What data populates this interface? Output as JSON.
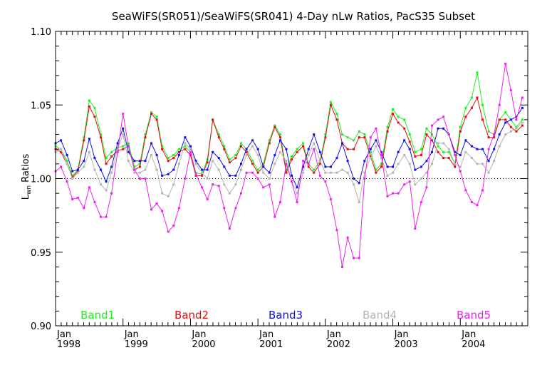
{
  "chart_data": {
    "type": "line",
    "title": "SeaWiFS(SR051)/SeaWiFS(SR041) 4-Day nLw Ratios, PacS35 Subset",
    "ylabel_main": "L",
    "ylabel_sub": "wn",
    "ylabel_rest": " Ratios",
    "xlabel": "",
    "xlim": [
      1998.0,
      2005.0
    ],
    "ylim": [
      0.9,
      1.1
    ],
    "y_ticks": [
      0.9,
      0.95,
      1.0,
      1.05,
      1.1
    ],
    "y_tick_labels": [
      "0.90",
      "0.95",
      "1.00",
      "1.05",
      "1.10"
    ],
    "x_ticks": [
      {
        "x": 1998.0,
        "month": "Jan",
        "year": "1998"
      },
      {
        "x": 1999.0,
        "month": "Jan",
        "year": "1999"
      },
      {
        "x": 2000.0,
        "month": "Jan",
        "year": "2000"
      },
      {
        "x": 2001.0,
        "month": "Jan",
        "year": "2001"
      },
      {
        "x": 2002.0,
        "month": "Jan",
        "year": "2002"
      },
      {
        "x": 2003.0,
        "month": "Jan",
        "year": "2003"
      },
      {
        "x": 2004.0,
        "month": "Jan",
        "year": "2004"
      }
    ],
    "reference_line": 1.0,
    "grid": false,
    "legend_placement": "bottom",
    "series": [
      {
        "name": "Band1",
        "color": "#22ee22",
        "x": [
          1998.0,
          1998.08,
          1998.17,
          1998.25,
          1998.33,
          1998.42,
          1998.5,
          1998.58,
          1998.67,
          1998.75,
          1998.83,
          1998.92,
          1999.0,
          1999.08,
          1999.17,
          1999.25,
          1999.33,
          1999.42,
          1999.5,
          1999.58,
          1999.67,
          1999.75,
          1999.83,
          1999.92,
          2000.0,
          2000.08,
          2000.17,
          2000.25,
          2000.33,
          2000.42,
          2000.5,
          2000.58,
          2000.67,
          2000.75,
          2000.83,
          2000.92,
          2001.0,
          2001.08,
          2001.17,
          2001.25,
          2001.33,
          2001.42,
          2001.5,
          2001.58,
          2001.67,
          2001.75,
          2001.83,
          2001.92,
          2002.0,
          2002.08,
          2002.17,
          2002.25,
          2002.33,
          2002.42,
          2002.5,
          2002.58,
          2002.67,
          2002.75,
          2002.83,
          2002.92,
          2003.0,
          2003.08,
          2003.17,
          2003.25,
          2003.33,
          2003.42,
          2003.5,
          2003.58,
          2003.67,
          2003.75,
          2003.83,
          2003.92,
          2004.0,
          2004.08,
          2004.17,
          2004.25,
          2004.33,
          2004.42,
          2004.5,
          2004.58,
          2004.67,
          2004.75,
          2004.83,
          2004.92
        ],
        "y": [
          1.022,
          1.02,
          1.012,
          1.002,
          1.006,
          1.028,
          1.053,
          1.048,
          1.03,
          1.014,
          1.018,
          1.021,
          1.022,
          1.024,
          1.008,
          1.01,
          1.03,
          1.045,
          1.042,
          1.022,
          1.014,
          1.016,
          1.02,
          1.022,
          1.018,
          1.004,
          1.003,
          1.013,
          1.04,
          1.03,
          1.022,
          1.013,
          1.016,
          1.024,
          1.02,
          1.012,
          1.006,
          1.01,
          1.026,
          1.036,
          1.03,
          1.006,
          1.015,
          1.02,
          1.024,
          1.01,
          1.006,
          1.012,
          1.03,
          1.052,
          1.044,
          1.03,
          1.028,
          1.026,
          1.032,
          1.03,
          1.018,
          1.006,
          1.01,
          1.035,
          1.047,
          1.042,
          1.04,
          1.03,
          1.018,
          1.02,
          1.034,
          1.03,
          1.022,
          1.018,
          1.018,
          1.01,
          1.035,
          1.048,
          1.055,
          1.072,
          1.05,
          1.032,
          1.03,
          1.04,
          1.045,
          1.04,
          1.035,
          1.04
        ]
      },
      {
        "name": "Band2",
        "color": "#dd1111",
        "x": [
          1998.0,
          1998.08,
          1998.17,
          1998.25,
          1998.33,
          1998.42,
          1998.5,
          1998.58,
          1998.67,
          1998.75,
          1998.83,
          1998.92,
          1999.0,
          1999.08,
          1999.17,
          1999.25,
          1999.33,
          1999.42,
          1999.5,
          1999.58,
          1999.67,
          1999.75,
          1999.83,
          1999.92,
          2000.0,
          2000.08,
          2000.17,
          2000.25,
          2000.33,
          2000.42,
          2000.5,
          2000.58,
          2000.67,
          2000.75,
          2000.83,
          2000.92,
          2001.0,
          2001.08,
          2001.17,
          2001.25,
          2001.33,
          2001.42,
          2001.5,
          2001.58,
          2001.67,
          2001.75,
          2001.83,
          2001.92,
          2002.0,
          2002.08,
          2002.17,
          2002.25,
          2002.33,
          2002.42,
          2002.5,
          2002.58,
          2002.67,
          2002.75,
          2002.83,
          2002.92,
          2003.0,
          2003.08,
          2003.17,
          2003.25,
          2003.33,
          2003.42,
          2003.5,
          2003.58,
          2003.67,
          2003.75,
          2003.83,
          2003.92,
          2004.0,
          2004.08,
          2004.17,
          2004.25,
          2004.33,
          2004.42,
          2004.5,
          2004.58,
          2004.67,
          2004.75,
          2004.83,
          2004.92
        ],
        "y": [
          1.02,
          1.018,
          1.01,
          1.001,
          1.005,
          1.026,
          1.049,
          1.042,
          1.028,
          1.01,
          1.015,
          1.019,
          1.02,
          1.022,
          1.006,
          1.008,
          1.028,
          1.044,
          1.04,
          1.02,
          1.012,
          1.014,
          1.018,
          1.02,
          1.016,
          1.002,
          1.002,
          1.011,
          1.04,
          1.028,
          1.02,
          1.011,
          1.014,
          1.022,
          1.018,
          1.01,
          1.004,
          1.008,
          1.024,
          1.035,
          1.028,
          1.004,
          1.013,
          1.018,
          1.022,
          1.008,
          1.004,
          1.01,
          1.028,
          1.05,
          1.04,
          1.024,
          1.02,
          1.02,
          1.028,
          1.028,
          1.015,
          1.004,
          1.008,
          1.032,
          1.044,
          1.038,
          1.034,
          1.025,
          1.015,
          1.016,
          1.03,
          1.026,
          1.018,
          1.014,
          1.014,
          1.008,
          1.032,
          1.042,
          1.048,
          1.055,
          1.04,
          1.028,
          1.028,
          1.04,
          1.04,
          1.035,
          1.032,
          1.036
        ]
      },
      {
        "name": "Band3",
        "color": "#1111dd",
        "x": [
          1998.0,
          1998.08,
          1998.17,
          1998.25,
          1998.33,
          1998.42,
          1998.5,
          1998.58,
          1998.67,
          1998.75,
          1998.83,
          1998.92,
          1999.0,
          1999.08,
          1999.17,
          1999.25,
          1999.33,
          1999.42,
          1999.5,
          1999.58,
          1999.67,
          1999.75,
          1999.83,
          1999.92,
          2000.0,
          2000.08,
          2000.17,
          2000.25,
          2000.33,
          2000.42,
          2000.5,
          2000.58,
          2000.67,
          2000.75,
          2000.83,
          2000.92,
          2001.0,
          2001.08,
          2001.17,
          2001.25,
          2001.33,
          2001.42,
          2001.5,
          2001.58,
          2001.67,
          2001.75,
          2001.83,
          2001.92,
          2002.0,
          2002.08,
          2002.17,
          2002.25,
          2002.33,
          2002.42,
          2002.5,
          2002.58,
          2002.67,
          2002.75,
          2002.83,
          2002.92,
          2003.0,
          2003.08,
          2003.17,
          2003.25,
          2003.33,
          2003.42,
          2003.5,
          2003.58,
          2003.67,
          2003.75,
          2003.83,
          2003.92,
          2004.0,
          2004.08,
          2004.17,
          2004.25,
          2004.33,
          2004.42,
          2004.5,
          2004.58,
          2004.67,
          2004.75,
          2004.83,
          2004.92
        ],
        "y": [
          1.024,
          1.026,
          1.016,
          1.005,
          1.006,
          1.012,
          1.027,
          1.014,
          1.006,
          0.998,
          1.008,
          1.024,
          1.034,
          1.018,
          1.012,
          1.012,
          1.012,
          1.024,
          1.016,
          1.002,
          1.003,
          1.006,
          1.016,
          1.028,
          1.022,
          1.012,
          1.006,
          1.006,
          1.018,
          1.014,
          1.008,
          1.002,
          1.002,
          1.01,
          1.02,
          1.026,
          1.02,
          1.008,
          1.004,
          1.016,
          1.026,
          1.02,
          1.002,
          0.994,
          1.008,
          1.02,
          1.03,
          1.018,
          1.008,
          1.008,
          1.014,
          1.024,
          1.012,
          1.0,
          0.997,
          1.012,
          1.02,
          1.026,
          1.018,
          1.008,
          1.008,
          1.018,
          1.026,
          1.02,
          1.006,
          1.008,
          1.012,
          1.018,
          1.034,
          1.034,
          1.03,
          1.018,
          1.016,
          1.026,
          1.022,
          1.02,
          1.02,
          1.012,
          1.02,
          1.03,
          1.038,
          1.04,
          1.042,
          1.048
        ]
      },
      {
        "name": "Band4",
        "color": "#b4b4b4",
        "x": [
          1998.0,
          1998.08,
          1998.17,
          1998.25,
          1998.33,
          1998.42,
          1998.5,
          1998.58,
          1998.67,
          1998.75,
          1998.83,
          1998.92,
          1999.0,
          1999.08,
          1999.17,
          1999.25,
          1999.33,
          1999.42,
          1999.5,
          1999.58,
          1999.67,
          1999.75,
          1999.83,
          1999.92,
          2000.0,
          2000.08,
          2000.17,
          2000.25,
          2000.33,
          2000.42,
          2000.5,
          2000.58,
          2000.67,
          2000.75,
          2000.83,
          2000.92,
          2001.0,
          2001.08,
          2001.17,
          2001.25,
          2001.33,
          2001.42,
          2001.5,
          2001.58,
          2001.67,
          2001.75,
          2001.83,
          2001.92,
          2002.0,
          2002.08,
          2002.17,
          2002.25,
          2002.33,
          2002.42,
          2002.5,
          2002.58,
          2002.67,
          2002.75,
          2002.83,
          2002.92,
          2003.0,
          2003.08,
          2003.17,
          2003.25,
          2003.33,
          2003.42,
          2003.5,
          2003.58,
          2003.67,
          2003.75,
          2003.83,
          2003.92,
          2004.0,
          2004.08,
          2004.17,
          2004.25,
          2004.33,
          2004.42,
          2004.5,
          2004.58,
          2004.67,
          2004.75,
          2004.83,
          2004.92
        ],
        "y": [
          1.018,
          1.02,
          1.01,
          1.0,
          1.004,
          1.008,
          1.018,
          1.006,
          0.996,
          0.992,
          1.004,
          1.02,
          1.03,
          1.012,
          1.004,
          1.004,
          1.006,
          1.016,
          1.006,
          0.99,
          0.988,
          0.996,
          1.01,
          1.024,
          1.02,
          1.01,
          1.004,
          1.0,
          1.012,
          1.006,
          0.996,
          0.99,
          0.996,
          1.006,
          1.016,
          1.022,
          1.016,
          1.004,
          1.0,
          1.01,
          1.018,
          1.012,
          0.998,
          0.99,
          1.004,
          1.016,
          1.024,
          1.012,
          1.004,
          1.004,
          1.004,
          1.006,
          1.004,
          0.996,
          0.984,
          1.004,
          1.014,
          1.022,
          1.014,
          1.002,
          1.004,
          1.01,
          1.016,
          1.01,
          0.996,
          1.0,
          1.004,
          1.01,
          1.024,
          1.024,
          1.02,
          1.01,
          1.008,
          1.018,
          1.014,
          1.01,
          1.01,
          1.004,
          1.012,
          1.022,
          1.03,
          1.032,
          1.034,
          1.038
        ]
      },
      {
        "name": "Band5",
        "color": "#ee22ee",
        "x": [
          1998.0,
          1998.08,
          1998.17,
          1998.25,
          1998.33,
          1998.42,
          1998.5,
          1998.58,
          1998.67,
          1998.75,
          1998.83,
          1998.92,
          1999.0,
          1999.08,
          1999.17,
          1999.25,
          1999.33,
          1999.42,
          1999.5,
          1999.58,
          1999.67,
          1999.75,
          1999.83,
          1999.92,
          2000.0,
          2000.08,
          2000.17,
          2000.25,
          2000.33,
          2000.42,
          2000.5,
          2000.58,
          2000.67,
          2000.75,
          2000.83,
          2000.92,
          2001.0,
          2001.08,
          2001.17,
          2001.25,
          2001.33,
          2001.42,
          2001.5,
          2001.58,
          2001.67,
          2001.75,
          2001.83,
          2001.92,
          2002.0,
          2002.08,
          2002.17,
          2002.25,
          2002.33,
          2002.42,
          2002.5,
          2002.58,
          2002.67,
          2002.75,
          2002.83,
          2002.92,
          2003.0,
          2003.08,
          2003.17,
          2003.25,
          2003.33,
          2003.42,
          2003.5,
          2003.58,
          2003.67,
          2003.75,
          2003.83,
          2003.92,
          2004.0,
          2004.08,
          2004.17,
          2004.25,
          2004.33,
          2004.42,
          2004.5,
          2004.58,
          2004.67,
          2004.75,
          2004.83,
          2004.92
        ],
        "y": [
          1.005,
          1.008,
          0.998,
          0.986,
          0.987,
          0.98,
          0.994,
          0.984,
          0.974,
          0.974,
          0.99,
          1.018,
          1.044,
          1.022,
          1.006,
          1.0,
          1.0,
          0.979,
          0.983,
          0.978,
          0.964,
          0.968,
          0.98,
          1.0,
          1.018,
          1.003,
          0.994,
          0.986,
          0.996,
          0.995,
          0.98,
          0.966,
          0.98,
          0.99,
          1.004,
          1.004,
          1.0,
          0.994,
          0.996,
          0.974,
          0.984,
          1.01,
          0.998,
          0.984,
          1.012,
          1.01,
          1.02,
          1.002,
          0.998,
          0.986,
          0.965,
          0.94,
          0.96,
          0.946,
          0.946,
          1.0,
          1.028,
          1.034,
          1.016,
          0.988,
          0.99,
          0.99,
          0.996,
          0.998,
          0.966,
          0.984,
          0.994,
          1.036,
          1.04,
          1.042,
          1.03,
          1.016,
          1.005,
          0.992,
          0.984,
          0.982,
          0.992,
          1.02,
          1.03,
          1.05,
          1.078,
          1.06,
          1.04,
          1.055
        ]
      }
    ]
  }
}
